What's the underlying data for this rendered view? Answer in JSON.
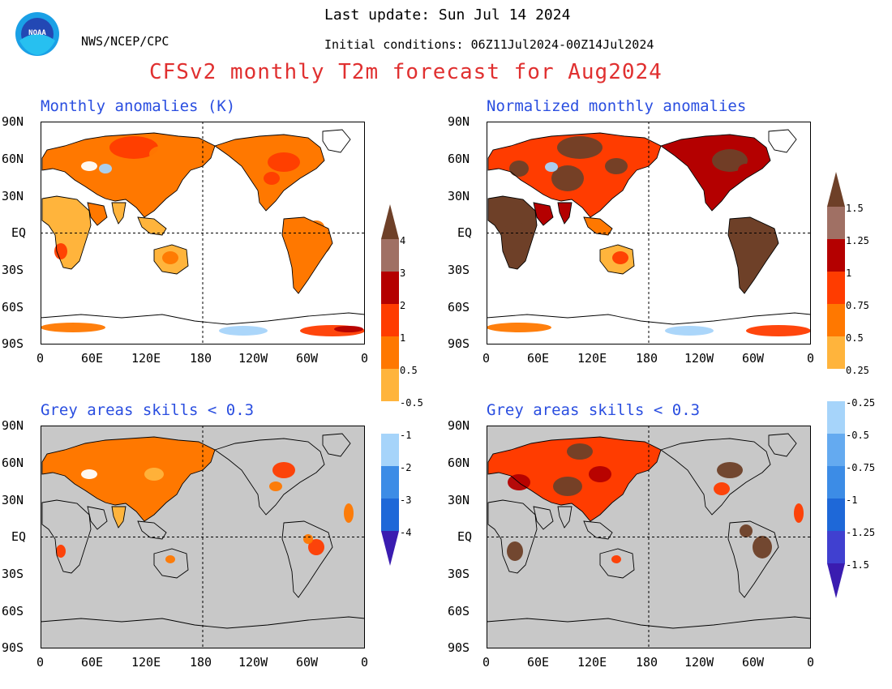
{
  "header": {
    "last_update": "Last update: Sun Jul 14 2024",
    "initial_conditions": "Initial conditions: 06Z11Jul2024-00Z14Jul2024",
    "agency": "NWS/NCEP/CPC",
    "logo_text": "NOAA",
    "main_title": "CFSv2 monthly T2m forecast for Aug2024"
  },
  "panels": {
    "top_left_title": "Monthly anomalies (K)",
    "top_right_title": "Normalized monthly anomalies",
    "bottom_left_title": "Grey areas skills < 0.3",
    "bottom_right_title": "Grey areas skills < 0.3"
  },
  "axes": {
    "lat_labels": [
      "90N",
      "60N",
      "30N",
      "EQ",
      "30S",
      "60S",
      "90S"
    ],
    "lon_labels": [
      "0",
      "60E",
      "120E",
      "180",
      "120W",
      "60W",
      "0"
    ]
  },
  "colorbar_left": {
    "labels": [
      "4",
      "3",
      "2",
      "1",
      "0.5",
      "-0.5",
      "-1",
      "-2",
      "-3",
      "-4"
    ]
  },
  "colorbar_right": {
    "labels": [
      "1.5",
      "1.25",
      "1",
      "0.75",
      "0.5",
      "0.25",
      "-0.25",
      "-0.5",
      "-0.75",
      "-1",
      "-1.25",
      "-1.5"
    ]
  },
  "colors": {
    "scale": [
      "#3a1cb0",
      "#4040d0",
      "#1e68d8",
      "#3c8ce6",
      "#64aaf0",
      "#a6d4fa",
      "#ffffff",
      "#ffb43c",
      "#ff7800",
      "#ff3c00",
      "#b40000",
      "#a07064",
      "#6e4028"
    ],
    "skill_mask": "#c8c8c8",
    "title_red": "#e03030",
    "title_blue": "#2a4ee0"
  }
}
